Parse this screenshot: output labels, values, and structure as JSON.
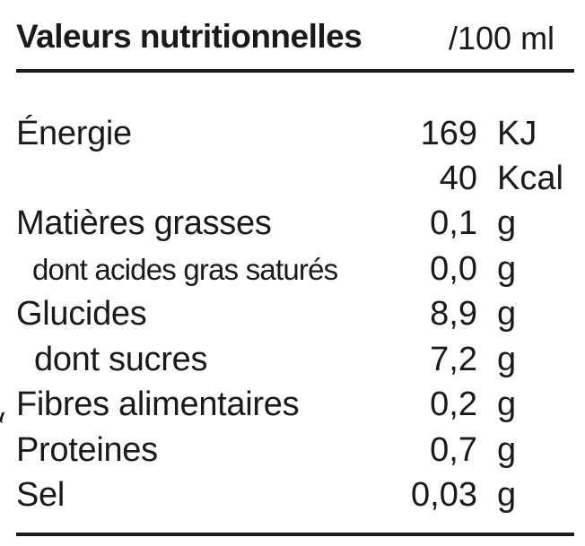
{
  "header": {
    "title": "Valeurs nutritionnelles",
    "unit": "/100 ml"
  },
  "rows": [
    {
      "name": "Énergie",
      "value": "169",
      "unit": "KJ"
    },
    {
      "name": "",
      "value": "40",
      "unit": "Kcal"
    },
    {
      "name": "Matières grasses",
      "value": "0,1",
      "unit": "g"
    },
    {
      "name": "dont acides gras saturés",
      "value": "0,0",
      "unit": "g"
    },
    {
      "name": "Glucides",
      "value": "8,9",
      "unit": "g"
    },
    {
      "name": "dont sucres",
      "value": "7,2",
      "unit": "g"
    },
    {
      "name": "Fibres alimentaires",
      "value": "0,2",
      "unit": "g"
    },
    {
      "name": "Proteines",
      "value": "0,7",
      "unit": "g"
    },
    {
      "name": "Sel",
      "value": "0,03",
      "unit": "g"
    }
  ]
}
